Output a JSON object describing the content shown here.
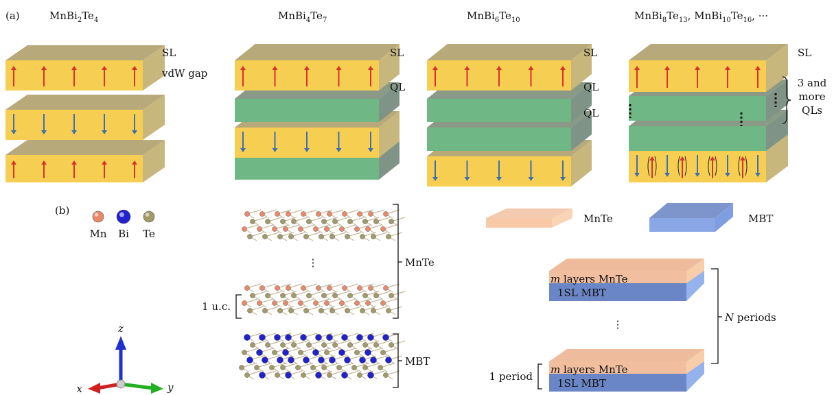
{
  "panel_a": {
    "tag": "(a)",
    "compounds": [
      {
        "id": "mbt",
        "formula": [
          "MnBi",
          "2",
          "Te",
          "4"
        ],
        "layers": [
          {
            "type": "SL",
            "spins": "up"
          },
          {
            "type": "SL",
            "spins": "down"
          },
          {
            "type": "SL",
            "spins": "up"
          }
        ],
        "labels": [
          "SL",
          "vdW gap"
        ]
      },
      {
        "id": "mbt147",
        "formula": [
          "MnBi",
          "4",
          "Te",
          "7"
        ],
        "layers": [
          {
            "type": "SL",
            "spins": "up"
          },
          {
            "type": "QL"
          },
          {
            "type": "SL",
            "spins": "down"
          },
          {
            "type": "QL"
          }
        ],
        "labels": [
          "SL",
          "QL"
        ]
      },
      {
        "id": "mbt1610",
        "formula": [
          "MnBi",
          "6",
          "Te",
          "10"
        ],
        "layers": [
          {
            "type": "SL",
            "spins": "up"
          },
          {
            "type": "QL"
          },
          {
            "type": "QL"
          },
          {
            "type": "SL",
            "spins": "down"
          }
        ],
        "labels": [
          "SL",
          "QL",
          "QL"
        ]
      },
      {
        "id": "mbtn",
        "formula": [
          "MnBi",
          "8",
          "Te",
          "13",
          ", MnBi",
          "10",
          "Te",
          "16",
          ", ···"
        ],
        "layers": [
          {
            "type": "SL",
            "spins": "up"
          },
          {
            "type": "QL"
          },
          {
            "type": "QL"
          },
          {
            "type": "SL",
            "spins": "mixed"
          }
        ],
        "labels": [
          "SL"
        ],
        "bracket_label": [
          "3 and",
          "more",
          "QLs"
        ]
      }
    ]
  },
  "panel_b": {
    "tag": "(b)",
    "atom_legend": [
      {
        "symbol": "Mn",
        "color": "#e8896a"
      },
      {
        "symbol": "Bi",
        "color": "#2222cc"
      },
      {
        "symbol": "Te",
        "color": "#a39a6a"
      }
    ],
    "structure": {
      "mnte_label": "MnTe",
      "mbt_label": "MBT",
      "unit_cell_label": "1 u.c.",
      "ellipsis": "⋮"
    },
    "axes": {
      "x": "x",
      "y": "y",
      "z": "z"
    },
    "slab_legend": [
      {
        "label": "MnTe",
        "color": "#f8c9a6"
      },
      {
        "label": "MBT",
        "color": "#7f9ee0"
      }
    ],
    "superlattice": {
      "top_layer_label": [
        "m",
        " layers MnTe"
      ],
      "bottom_layer_label": "1SL MBT",
      "periods_label": [
        "N",
        " periods"
      ],
      "period_label": "1 period",
      "ellipsis": "⋮"
    }
  },
  "colors": {
    "sl_front": "#f6cf52",
    "sl_top": "#b7a97a",
    "sl_side": "#c8b77d",
    "ql_front": "#6fb784",
    "ql_top": "#8a9a86",
    "ql_side": "#7f9486",
    "spin_up": "#d8322a",
    "spin_down": "#3f6fb0"
  }
}
